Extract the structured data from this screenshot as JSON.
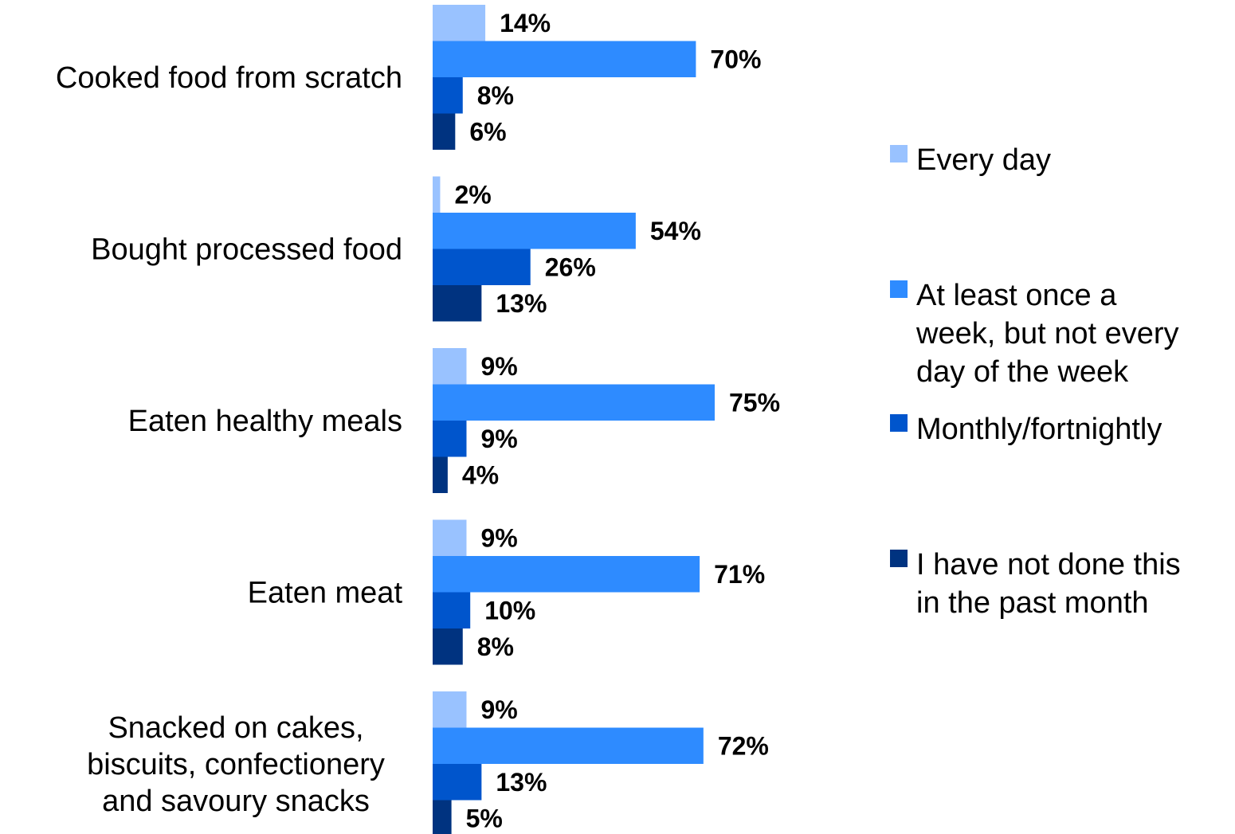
{
  "chart_data": {
    "type": "bar",
    "orientation": "horizontal",
    "value_suffix": "%",
    "categories": [
      "Cooked food from scratch",
      "Bought processed food",
      "Eaten healthy meals",
      "Eaten meat",
      "Snacked on cakes, biscuits, confectionery and savoury snacks"
    ],
    "series": [
      {
        "name": "Every day",
        "color": "#99c2ff",
        "values": [
          14,
          2,
          9,
          9,
          9
        ]
      },
      {
        "name": "At least once a week, but not every day of the week",
        "color": "#2e8bff",
        "values": [
          70,
          54,
          75,
          71,
          72
        ]
      },
      {
        "name": "Monthly/fortnightly",
        "color": "#0055cc",
        "values": [
          8,
          26,
          9,
          10,
          13
        ]
      },
      {
        "name": "I have not done this in the past month",
        "color": "#003380",
        "values": [
          6,
          13,
          4,
          8,
          5
        ]
      }
    ],
    "legend": "right",
    "grid": false
  }
}
